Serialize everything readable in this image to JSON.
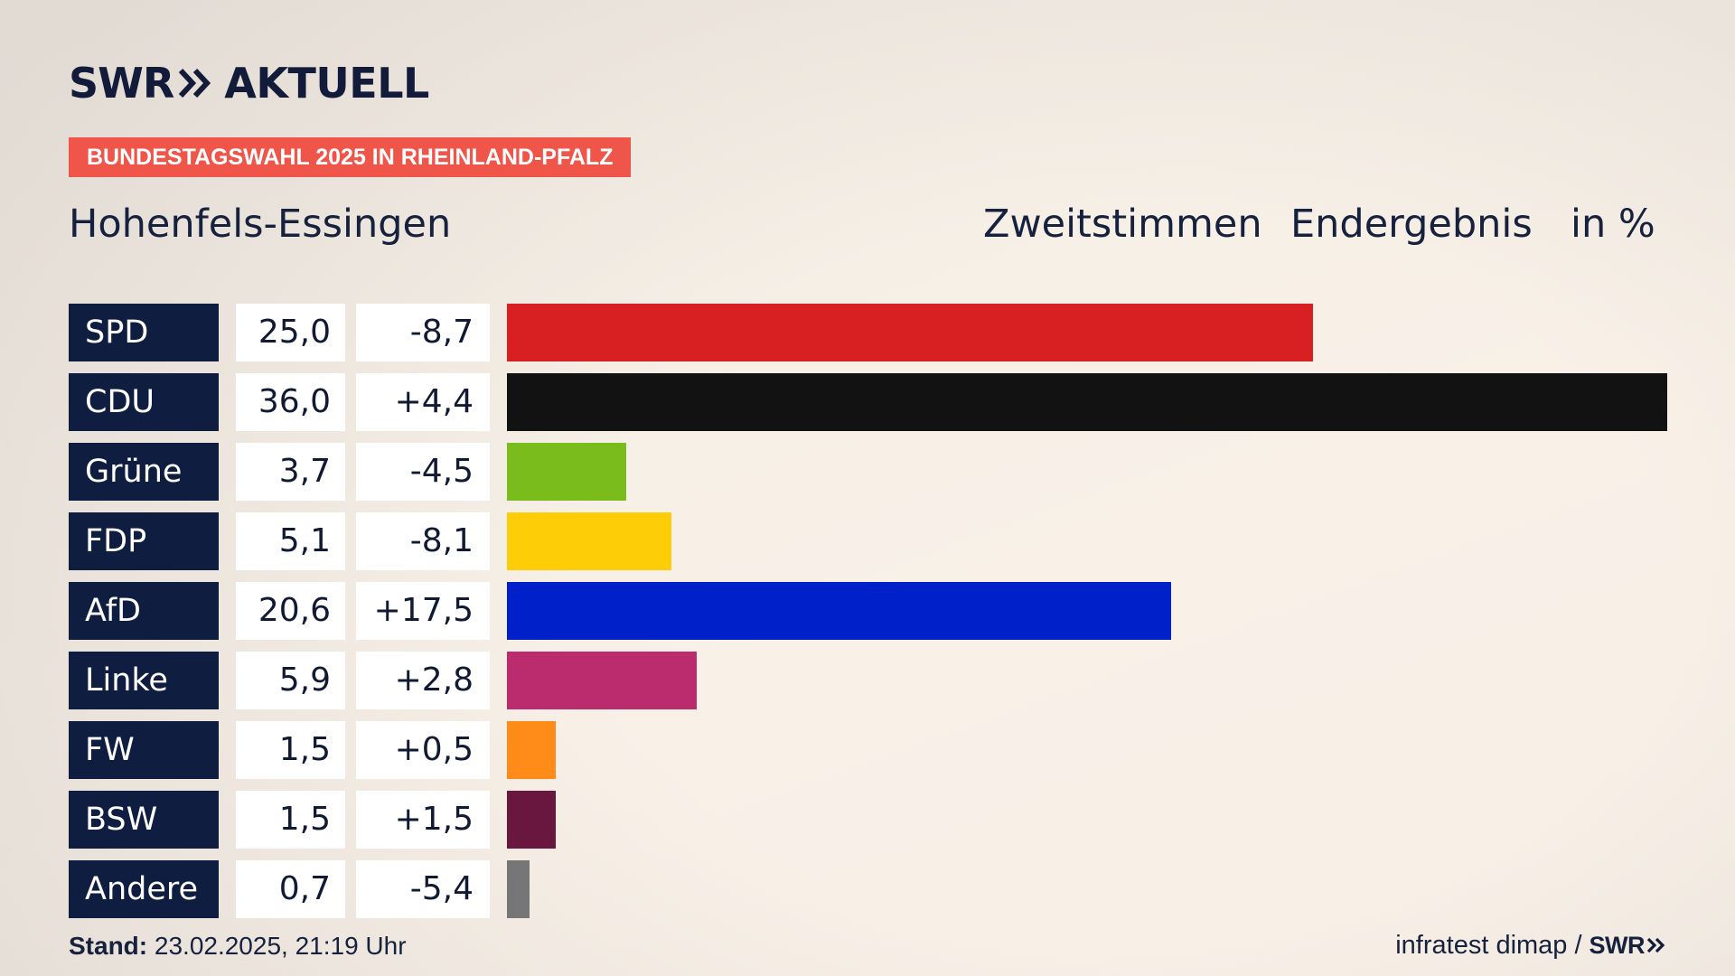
{
  "brand": {
    "logo_main": "SWR",
    "logo_sub": "AKTUELL",
    "footer_logo": "SWR",
    "accent_color": "#f0554a",
    "navy_color": "#0f1e40"
  },
  "badge": "BUNDESTAGSWAHL 2025 IN RHEINLAND-PFALZ",
  "region": "Hohenfels-Essingen",
  "header": {
    "vote_type": "Zweitstimmen",
    "result_type": "Endergebnis",
    "unit": "in %"
  },
  "chart_data": {
    "type": "bar",
    "orientation": "horizontal",
    "title": "Zweitstimmen Endergebnis in %",
    "categories": [
      "SPD",
      "CDU",
      "Grüne",
      "FDP",
      "AfD",
      "Linke",
      "FW",
      "BSW",
      "Andere"
    ],
    "values": [
      25.0,
      36.0,
      3.7,
      5.1,
      20.6,
      5.9,
      1.5,
      1.5,
      0.7
    ],
    "value_labels": [
      "25,0",
      "36,0",
      "3,7",
      "5,1",
      "20,6",
      "5,9",
      "1,5",
      "1,5",
      "0,7"
    ],
    "changes": [
      -8.7,
      4.4,
      -4.5,
      -8.1,
      17.5,
      2.8,
      0.5,
      1.5,
      -5.4
    ],
    "change_labels": [
      "-8,7",
      "+4,4",
      "-4,5",
      "-8,1",
      "+17,5",
      "+2,8",
      "+0,5",
      "+1,5",
      "-5,4"
    ],
    "colors": [
      "#d81f21",
      "#121212",
      "#79bc1c",
      "#fdcd08",
      "#0021c9",
      "#bb2c6e",
      "#ff8c19",
      "#6a173f",
      "#767676"
    ],
    "xlim": [
      0,
      36.0
    ]
  },
  "footer": {
    "stand_label": "Stand:",
    "stand_value": "23.02.2025, 21:19 Uhr",
    "source": "infratest dimap",
    "separator": "/"
  }
}
